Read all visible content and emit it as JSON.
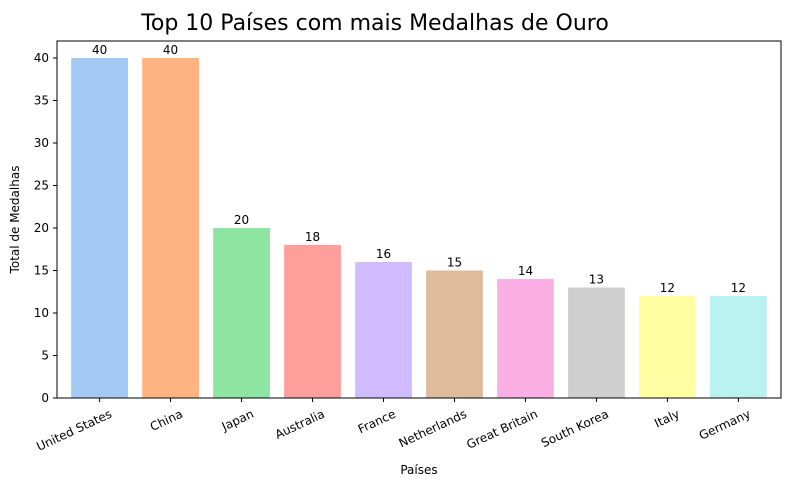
{
  "chart_data": {
    "type": "bar",
    "title": "Top 10 Países com mais Medalhas de Ouro",
    "xlabel": "Países",
    "ylabel": "Total de Medalhas",
    "categories": [
      "United States",
      "China",
      "Japan",
      "Australia",
      "France",
      "Netherlands",
      "Great Britain",
      "South Korea",
      "Italy",
      "Germany"
    ],
    "values": [
      40,
      40,
      20,
      18,
      16,
      15,
      14,
      13,
      12,
      12
    ],
    "data_labels": [
      "40",
      "40",
      "20",
      "18",
      "16",
      "15",
      "14",
      "13",
      "12",
      "12"
    ],
    "colors": [
      "#a1c9f4",
      "#ffb482",
      "#8de5a1",
      "#ff9f9b",
      "#d0bbff",
      "#debb9b",
      "#fab0e4",
      "#cfcfcf",
      "#fffea3",
      "#b9f2f0"
    ],
    "ylim": [
      0,
      42
    ],
    "yticks": [
      0,
      5,
      10,
      15,
      20,
      25,
      30,
      35,
      40
    ],
    "ytick_labels": [
      "0",
      "5",
      "10",
      "15",
      "20",
      "25",
      "30",
      "35",
      "40"
    ],
    "grid": false,
    "legend": "none"
  }
}
